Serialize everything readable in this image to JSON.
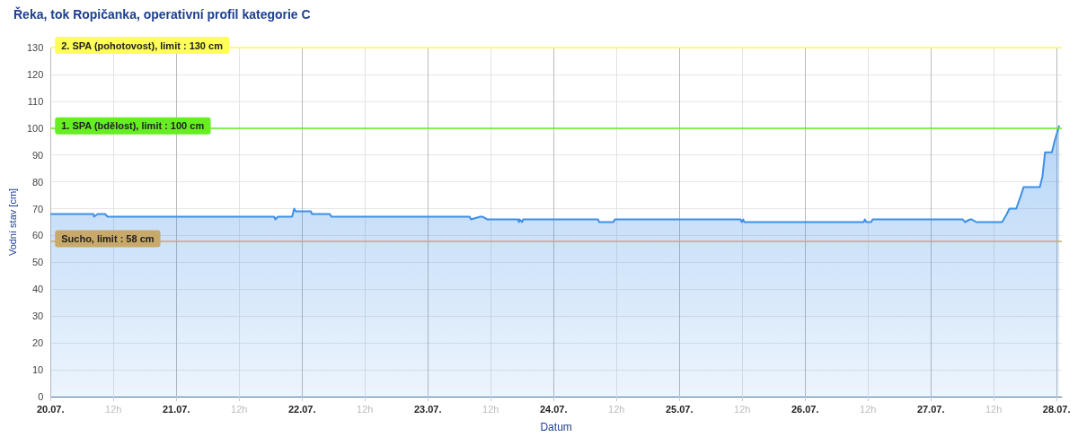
{
  "chart_data": {
    "type": "area",
    "title": "Řeka, tok Ropičanka, operativní profil kategorie C",
    "xlabel": "Datum",
    "ylabel": "Vodní stav [cm]",
    "x": [
      "--07-20T00:00",
      "--07-20T08:12",
      "--07-20T08:18",
      "--07-20T09:00",
      "--07-20T10:24",
      "--07-20T10:54",
      "--07-21T18:42",
      "--07-21T18:54",
      "--07-21T19:24",
      "--07-21T22:06",
      "--07-21T22:30",
      "--07-21T22:48",
      "--07-22T01:42",
      "--07-22T01:54",
      "--07-22T05:18",
      "--07-22T05:36",
      "--07-23T08:00",
      "--07-23T08:12",
      "--07-23T10:00",
      "--07-23T10:30",
      "--07-23T11:24",
      "--07-23T17:12",
      "--07-23T17:24",
      "--07-23T17:30",
      "--07-23T18:00",
      "--07-23T18:12",
      "--07-23T18:24",
      "--07-24T08:30",
      "--07-24T08:42",
      "--07-24T11:24",
      "--07-24T11:42",
      "--07-25T11:42",
      "--07-25T11:54",
      "--07-25T12:12",
      "--07-25T12:24",
      "--07-26T11:12",
      "--07-26T11:24",
      "--07-26T11:42",
      "--07-26T12:36",
      "--07-26T12:54",
      "--07-27T06:06",
      "--07-27T06:30",
      "--07-27T07:30",
      "--07-27T07:48",
      "--07-27T08:42",
      "--07-27T09:00",
      "--07-27T13:36",
      "--07-27T14:30",
      "--07-27T15:00",
      "--07-27T16:18",
      "--07-27T17:12",
      "--07-27T17:42",
      "--07-27T20:48",
      "--07-27T21:18",
      "--07-27T21:48",
      "--07-27T23:06",
      "--07-27T23:36",
      "--07-28T00:30"
    ],
    "series": [
      {
        "color": "#3d8fe8",
        "values": [
          68,
          68,
          67,
          68,
          68,
          67,
          67,
          66,
          67,
          67,
          70,
          69,
          69,
          68,
          68,
          67,
          67,
          66,
          67,
          67,
          66,
          66,
          65,
          66,
          65,
          66,
          66,
          66,
          65,
          65,
          66,
          66,
          65,
          66,
          65,
          65,
          66,
          65,
          65,
          66,
          66,
          65,
          66,
          66,
          65,
          65,
          65,
          68,
          70,
          70,
          75,
          78,
          78,
          82,
          91,
          91,
          95,
          101
        ]
      }
    ],
    "xlim": [
      "--07-20T00:00",
      "--07-28T01:00"
    ],
    "xticks": [
      {
        "value": "--07-20T00:00",
        "label": "20.07."
      },
      {
        "value": "--07-20T12:00",
        "label": "12h"
      },
      {
        "value": "--07-21T00:00",
        "label": "21.07."
      },
      {
        "value": "--07-21T12:00",
        "label": "12h"
      },
      {
        "value": "--07-22T00:00",
        "label": "22.07."
      },
      {
        "value": "--07-22T12:00",
        "label": "12h"
      },
      {
        "value": "--07-23T00:00",
        "label": "23.07."
      },
      {
        "value": "--07-23T12:00",
        "label": "12h"
      },
      {
        "value": "--07-24T00:00",
        "label": "24.07."
      },
      {
        "value": "--07-24T12:00",
        "label": "12h"
      },
      {
        "value": "--07-25T00:00",
        "label": "25.07."
      },
      {
        "value": "--07-25T12:00",
        "label": "12h"
      },
      {
        "value": "--07-26T00:00",
        "label": "26.07."
      },
      {
        "value": "--07-26T12:00",
        "label": "12h"
      },
      {
        "value": "--07-27T00:00",
        "label": "27.07."
      },
      {
        "value": "--07-27T12:00",
        "label": "12h"
      },
      {
        "value": "--07-28T00:00",
        "label": "28.07."
      }
    ],
    "ylim": [
      0,
      130
    ],
    "yticks": [
      0,
      10,
      20,
      30,
      40,
      50,
      60,
      70,
      80,
      90,
      100,
      110,
      120,
      130
    ],
    "ref_lines": [
      {
        "axis": "y",
        "value": 130,
        "label": "2. SPA (pohotovost), limit : 130 cm",
        "color": "#ffff55"
      },
      {
        "axis": "y",
        "value": 100,
        "label": "1. SPA (bdělost), limit : 100 cm",
        "color": "#66ee22"
      },
      {
        "axis": "y",
        "value": 58,
        "label": "Sucho, limit : 58 cm",
        "color": "#c8a96a"
      }
    ],
    "grid": true,
    "marker": "none",
    "line_style": "solid"
  }
}
